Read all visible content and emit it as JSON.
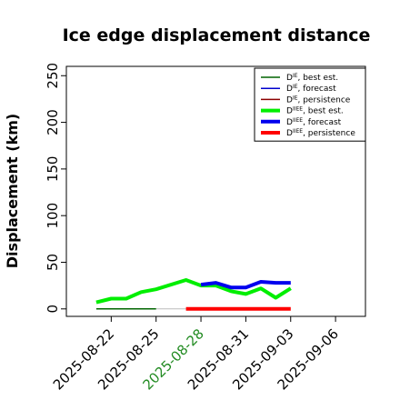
{
  "chart_data": {
    "type": "line",
    "title": "Ice edge displacement distance",
    "xlabel": "",
    "ylabel": "Displacement (km)",
    "ylim": [
      -8,
      260
    ],
    "yticks": [
      0,
      50,
      100,
      150,
      200,
      250
    ],
    "xlim": [
      "2025-08-19",
      "2025-09-08"
    ],
    "xticks": [
      {
        "label": "2025-08-22",
        "x": "2025-08-22",
        "color": "#000000"
      },
      {
        "label": "2025-08-25",
        "x": "2025-08-25",
        "color": "#000000"
      },
      {
        "label": "2025-08-28",
        "x": "2025-08-28",
        "color": "#228B22"
      },
      {
        "label": "2025-08-31",
        "x": "2025-08-31",
        "color": "#000000"
      },
      {
        "label": "2025-09-03",
        "x": "2025-09-03",
        "color": "#000000"
      },
      {
        "label": "2025-09-06",
        "x": "2025-09-06",
        "color": "#000000"
      }
    ],
    "grid": false,
    "legend_position": "top-right",
    "series": [
      {
        "name": "D^IE, best est.",
        "legend_main": "D",
        "legend_sup": "IE",
        "legend_rest": ", best est.",
        "color": "#006400",
        "width": 1.5,
        "x": [
          "2025-08-21",
          "2025-08-25"
        ],
        "y": [
          0,
          0
        ]
      },
      {
        "name": "D^IE, forecast",
        "legend_main": "D",
        "legend_sup": "IE",
        "legend_rest": ", forecast",
        "color": "#0000CD",
        "width": 1.5,
        "x": [],
        "y": []
      },
      {
        "name": "D^IE, persistence",
        "legend_main": "D",
        "legend_sup": "IE",
        "legend_rest": ", persistence",
        "color": "#8B0000",
        "width": 1.5,
        "x": [],
        "y": []
      },
      {
        "name": "D^IIEE, best est.",
        "legend_main": "D",
        "legend_sup": "IIEE",
        "legend_rest": ", best est.",
        "color": "#00EE00",
        "width": 4,
        "x": [
          "2025-08-21",
          "2025-08-22",
          "2025-08-23",
          "2025-08-24",
          "2025-08-25",
          "2025-08-27",
          "2025-08-28",
          "2025-08-29",
          "2025-08-30",
          "2025-08-31",
          "2025-09-01",
          "2025-09-02",
          "2025-09-03"
        ],
        "y": [
          7,
          11,
          11,
          18,
          21,
          31,
          25,
          25,
          19,
          16,
          22,
          12,
          22
        ]
      },
      {
        "name": "D^IIEE, forecast",
        "legend_main": "D",
        "legend_sup": "IIEE",
        "legend_rest": ", forecast",
        "color": "#0000EE",
        "width": 4,
        "x": [
          "2025-08-28",
          "2025-08-29",
          "2025-08-30",
          "2025-08-31",
          "2025-09-01",
          "2025-09-02",
          "2025-09-03"
        ],
        "y": [
          26,
          28,
          23,
          23,
          29,
          28,
          28
        ]
      },
      {
        "name": "D^IIEE, persistence",
        "legend_main": "D",
        "legend_sup": "IIEE",
        "legend_rest": ", persistence",
        "color": "#FF0000",
        "width": 4,
        "x": [
          "2025-08-27",
          "2025-08-28",
          "2025-08-29",
          "2025-08-30",
          "2025-08-31",
          "2025-09-01",
          "2025-09-02",
          "2025-09-03"
        ],
        "y": [
          0,
          0,
          0,
          0,
          0,
          0,
          0,
          0
        ]
      }
    ],
    "extra_lines": [
      {
        "x": [
          "2025-08-25",
          "2025-08-27"
        ],
        "y": [
          0,
          0
        ],
        "color": "#bbbbbb",
        "width": 1
      },
      {
        "x": [
          "2025-08-25",
          "2025-08-27"
        ],
        "y": [
          21,
          31
        ],
        "color": "#00CC00",
        "width": 1
      }
    ]
  }
}
